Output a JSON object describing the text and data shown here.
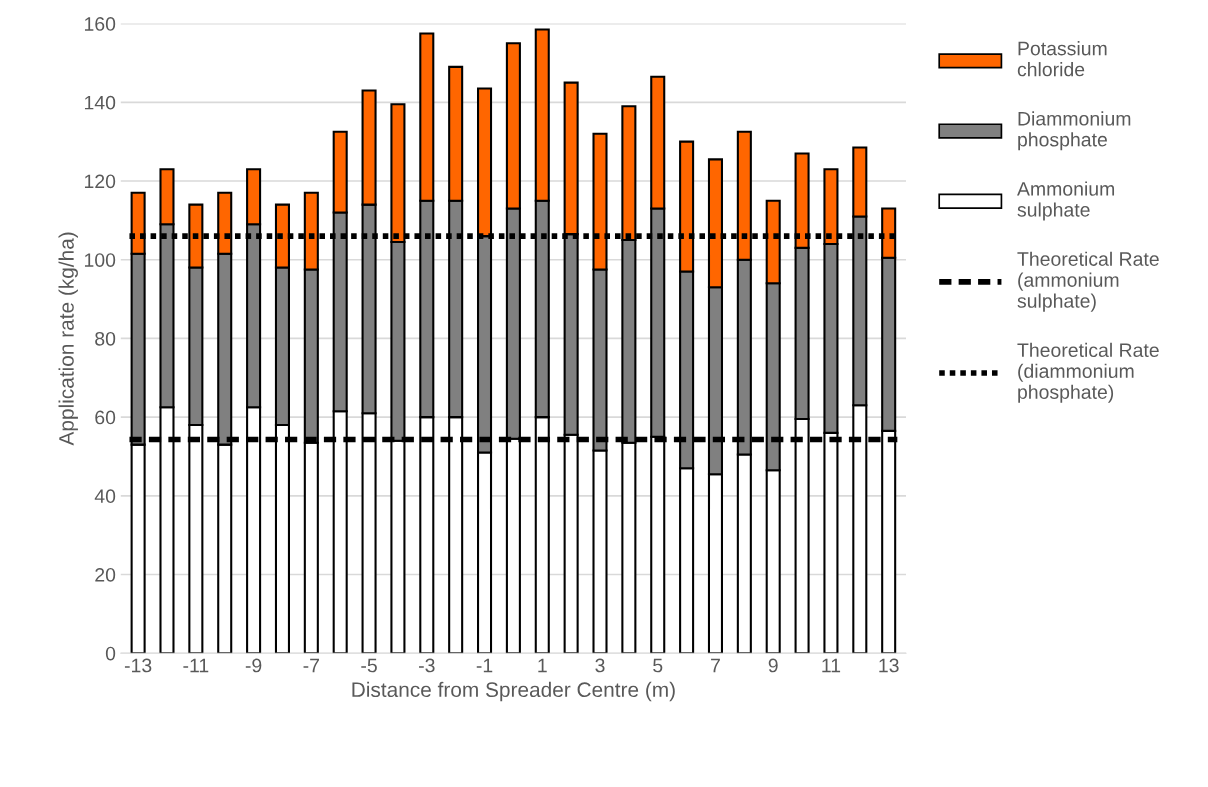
{
  "chart_data": {
    "type": "bar",
    "stacked": true,
    "xlabel": "Distance from Spreader Centre (m)",
    "ylabel": "Application rate (kg/ha)",
    "categories": [
      "-13",
      null,
      "-11",
      null,
      "-9",
      null,
      "-7",
      null,
      "-5",
      null,
      "-3",
      null,
      "-1",
      null,
      "1",
      null,
      "3",
      null,
      "5",
      null,
      "7",
      null,
      "9",
      null,
      "11",
      null,
      "13"
    ],
    "series": [
      {
        "name": "Ammonium\nsulphate",
        "color": "#ffffff",
        "values": [
          53,
          62.5,
          58,
          53,
          62.5,
          58,
          53.5,
          61.5,
          61,
          54,
          60,
          60,
          51,
          54.5,
          60,
          55.5,
          51.5,
          53.5,
          55,
          47,
          45.5,
          50.5,
          46.5,
          59.5,
          56,
          63,
          56.5
        ]
      },
      {
        "name": "Diammonium\nphosphate",
        "color": "#808080",
        "values": [
          48.5,
          46.5,
          40,
          48.5,
          46.5,
          40,
          44,
          50.5,
          53,
          50.5,
          55,
          55,
          55,
          58.5,
          55,
          51,
          46,
          51.5,
          58,
          50,
          47.5,
          49.5,
          47.5,
          43.5,
          48,
          48,
          44
        ]
      },
      {
        "name": "Potassium\nchloride",
        "color": "#ff6600",
        "values": [
          15.5,
          14,
          16,
          15.5,
          14,
          16,
          19.5,
          20.5,
          29,
          35,
          42.5,
          34,
          37.5,
          42,
          43.5,
          38.5,
          34.5,
          34,
          33.5,
          33,
          32.5,
          32.5,
          21,
          24,
          19,
          17.5,
          12.5
        ]
      }
    ],
    "ref_lines": [
      {
        "axis": "y",
        "value": 54.3,
        "label": "Theoretical Rate\n(ammonium\nsulphate)",
        "color": "#000000",
        "line_style": "dashed"
      },
      {
        "axis": "y",
        "value": 106,
        "label": "Theoretical Rate\n(diammonium\nphosphate)",
        "color": "#000000",
        "line_style": "dotted"
      }
    ],
    "ylim": [
      0,
      160
    ],
    "yticks": [
      0,
      20,
      40,
      60,
      80,
      100,
      120,
      140,
      160
    ],
    "grid": "y",
    "legend": "right"
  }
}
